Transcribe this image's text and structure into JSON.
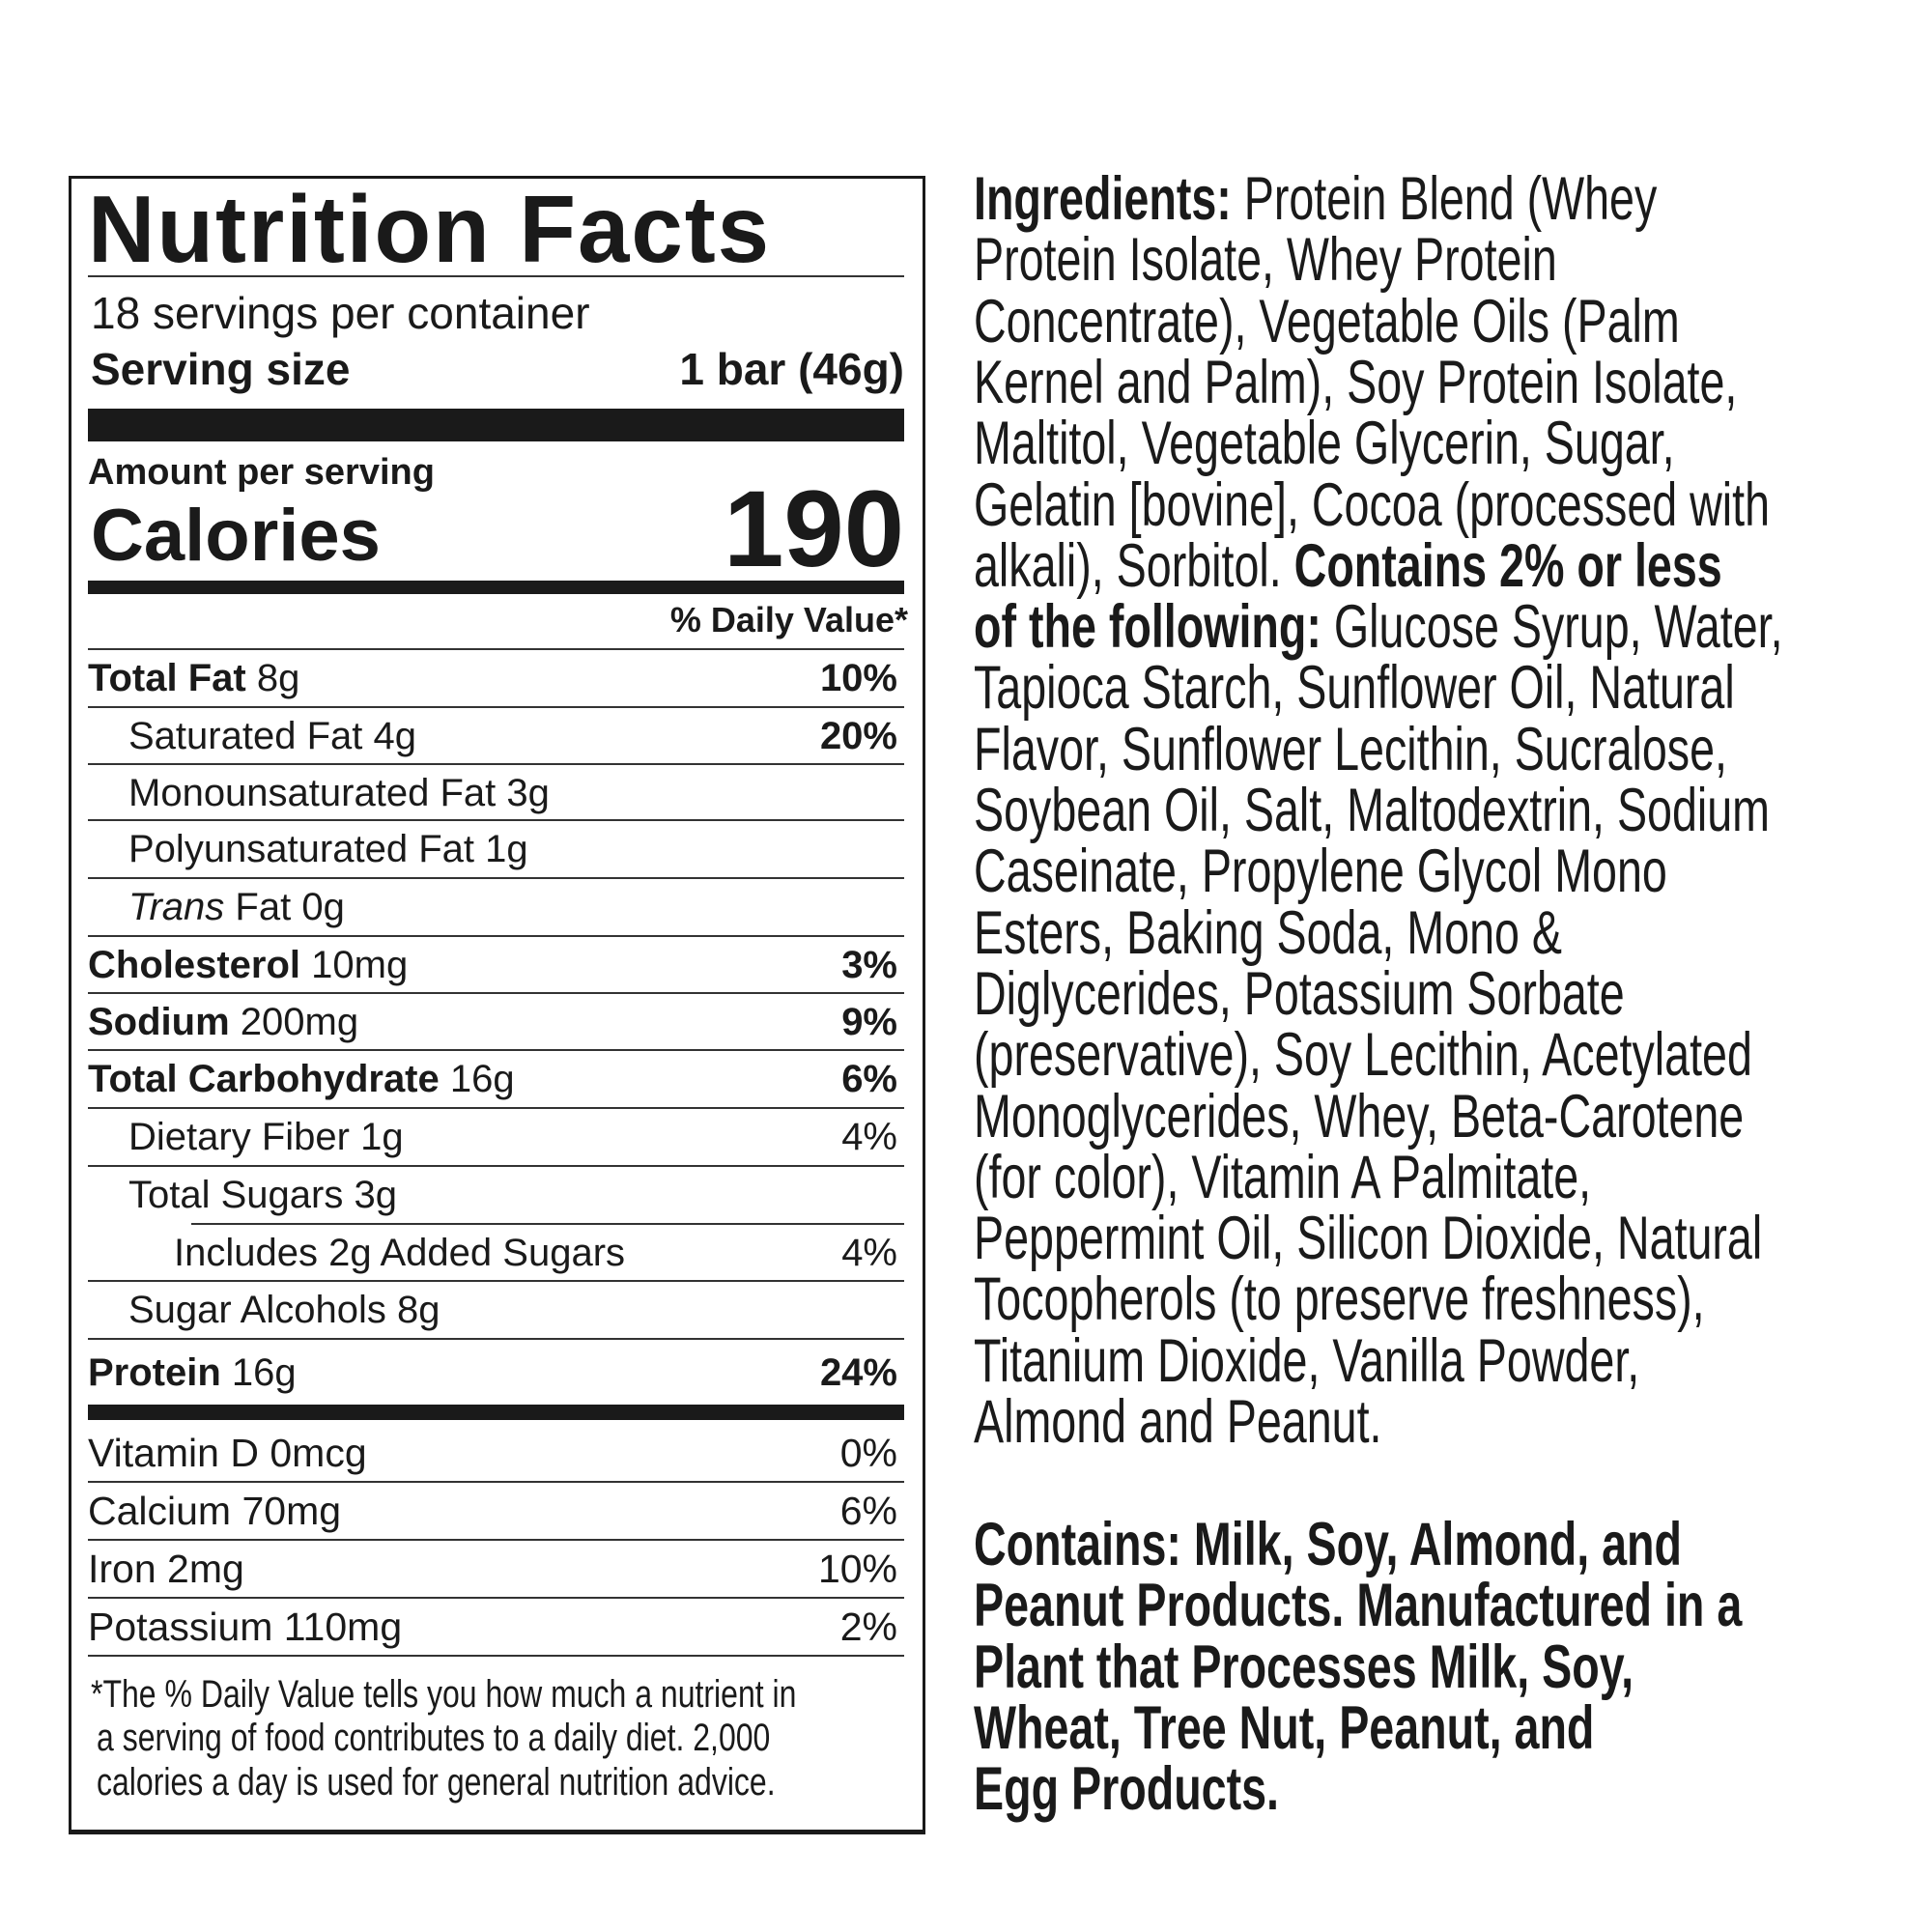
{
  "label": {
    "title": "Nutrition Facts",
    "servings_per_container": "18 servings per container",
    "serving_size_label": "Serving size",
    "serving_size_value": "1 bar (46g)",
    "amount_per_serving": "Amount per serving",
    "calories_label": "Calories",
    "calories_value": "190",
    "daily_value_header": "% Daily Value*",
    "nutrients": [
      {
        "name": "Total Fat",
        "amount": "8g",
        "dv": "10%",
        "bold": true,
        "indent": 0
      },
      {
        "name": "Saturated Fat",
        "amount": "4g",
        "dv": "20%",
        "bold": false,
        "dv_bold": true,
        "indent": 1
      },
      {
        "name": "Monounsaturated Fat",
        "amount": "3g",
        "dv": "",
        "bold": false,
        "indent": 1
      },
      {
        "name": "Polyunsaturated Fat",
        "amount": "1g",
        "dv": "",
        "bold": false,
        "indent": 1
      },
      {
        "italic_prefix": "Trans",
        "name": "Fat",
        "amount": "0g",
        "dv": "",
        "bold": false,
        "indent": 1
      },
      {
        "name": "Cholesterol",
        "amount": "10mg",
        "dv": "3%",
        "bold": true,
        "indent": 0
      },
      {
        "name": "Sodium",
        "amount": "200mg",
        "dv": "9%",
        "bold": true,
        "indent": 0
      },
      {
        "name": "Total Carbohydrate",
        "amount": "16g",
        "dv": "6%",
        "bold": true,
        "indent": 0
      },
      {
        "name": "Dietary Fiber",
        "amount": "1g",
        "dv": "4%",
        "bold": false,
        "indent": 1
      },
      {
        "name": "Total Sugars",
        "amount": "3g",
        "dv": "",
        "bold": false,
        "indent": 1
      },
      {
        "name": "Includes 2g Added Sugars",
        "amount": "",
        "dv": "4%",
        "bold": false,
        "indent": 2
      },
      {
        "name": "Sugar Alcohols",
        "amount": "8g",
        "dv": "",
        "bold": false,
        "indent": 1
      },
      {
        "name": "Protein",
        "amount": "16g",
        "dv": "24%",
        "bold": true,
        "indent": 0
      }
    ],
    "vitamins": [
      {
        "name": "Vitamin D 0mcg",
        "dv": "0%"
      },
      {
        "name": "Calcium 70mg",
        "dv": "6%"
      },
      {
        "name": "Iron 2mg",
        "dv": "10%"
      },
      {
        "name": "Potassium 110mg",
        "dv": "2%"
      }
    ],
    "footnote": [
      "*The % Daily Value tells you how much a nutrient in",
      "a serving of food contributes to a daily diet. 2,000",
      "calories a day is used for general nutrition advice."
    ]
  },
  "ingredients": {
    "lines": [
      [
        {
          "b": true,
          "t": "Ingredients:"
        },
        {
          "b": false,
          "t": " Protein Blend (Whey"
        }
      ],
      [
        {
          "b": false,
          "t": "Protein Isolate, Whey Protein"
        }
      ],
      [
        {
          "b": false,
          "t": "Concentrate), Vegetable Oils (Palm"
        }
      ],
      [
        {
          "b": false,
          "t": "Kernel and Palm), Soy Protein Isolate,"
        }
      ],
      [
        {
          "b": false,
          "t": "Maltitol, Vegetable Glycerin, Sugar,"
        }
      ],
      [
        {
          "b": false,
          "t": "Gelatin [bovine], Cocoa (processed with"
        }
      ],
      [
        {
          "b": false,
          "t": "alkali), Sorbitol. "
        },
        {
          "b": true,
          "t": "Contains 2% or less"
        }
      ],
      [
        {
          "b": true,
          "t": "of the following:"
        },
        {
          "b": false,
          "t": " Glucose Syrup, Water,"
        }
      ],
      [
        {
          "b": false,
          "t": "Tapioca Starch, Sunflower Oil, Natural"
        }
      ],
      [
        {
          "b": false,
          "t": "Flavor, Sunflower Lecithin, Sucralose,"
        }
      ],
      [
        {
          "b": false,
          "t": "Soybean Oil, Salt, Maltodextrin, Sodium"
        }
      ],
      [
        {
          "b": false,
          "t": "Caseinate, Propylene Glycol Mono"
        }
      ],
      [
        {
          "b": false,
          "t": "Esters, Baking Soda, Mono &"
        }
      ],
      [
        {
          "b": false,
          "t": "Diglycerides, Potassium Sorbate"
        }
      ],
      [
        {
          "b": false,
          "t": "(preservative), Soy Lecithin, Acetylated"
        }
      ],
      [
        {
          "b": false,
          "t": "Monoglycerides, Whey, Beta-Carotene"
        }
      ],
      [
        {
          "b": false,
          "t": "(for color), Vitamin A Palmitate,"
        }
      ],
      [
        {
          "b": false,
          "t": "Peppermint Oil, Silicon Dioxide, Natural"
        }
      ],
      [
        {
          "b": false,
          "t": "Tocopherols (to preserve freshness),"
        }
      ],
      [
        {
          "b": false,
          "t": "Titanium Dioxide, Vanilla Powder,"
        }
      ],
      [
        {
          "b": false,
          "t": "Almond and Peanut."
        }
      ]
    ]
  },
  "allergens": {
    "lines": [
      "Contains: Milk, Soy, Almond, and",
      "Peanut Products. Manufactured in a",
      "Plant that Processes Milk, Soy,",
      "Wheat, Tree Nut, Peanut, and",
      "Egg Products."
    ]
  }
}
